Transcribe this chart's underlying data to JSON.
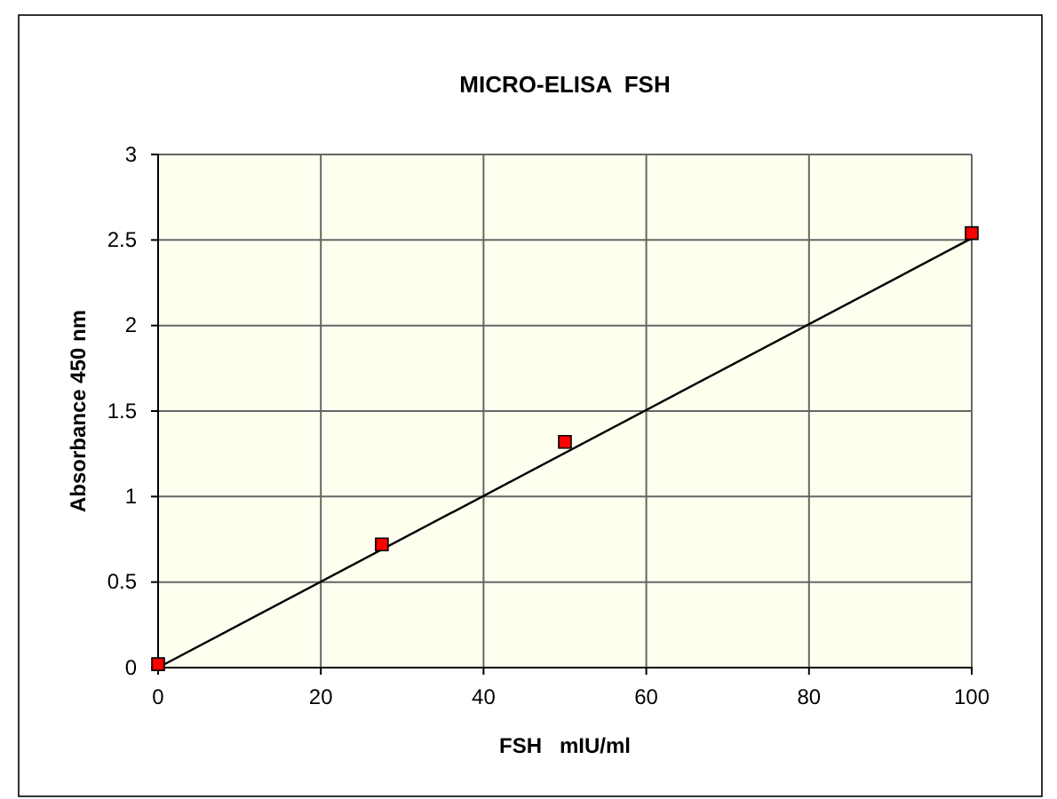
{
  "chart_data": {
    "type": "scatter",
    "title": "MICRO-ELISA  FSH",
    "xlabel": "FSH   mIU/ml",
    "ylabel": "Absorbance 450 nm",
    "series": [
      {
        "color": "#ff0000",
        "x": [
          0,
          27.5,
          50,
          100
        ],
        "values": [
          0.02,
          0.72,
          1.32,
          2.54
        ],
        "marker": "square"
      },
      {
        "type": "line",
        "color": "#000000",
        "x": [
          0,
          100
        ],
        "values": [
          0,
          2.51
        ],
        "marker": "none"
      }
    ],
    "xlim": [
      0,
      100
    ],
    "xticks": [
      0,
      20,
      40,
      60,
      80,
      100
    ],
    "ylim": [
      0,
      3
    ],
    "yticks": [
      0,
      0.5,
      1,
      1.5,
      2,
      2.5,
      3
    ],
    "grid": true
  }
}
